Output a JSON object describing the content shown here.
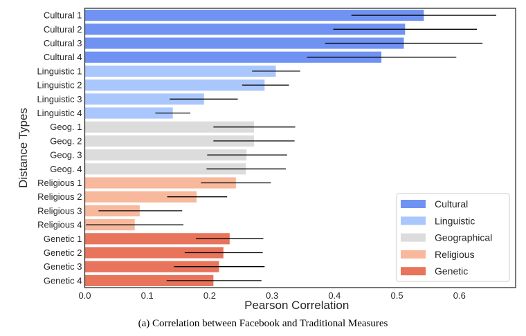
{
  "chart_data": {
    "type": "bar",
    "orientation": "horizontal",
    "title": "",
    "xlabel": "Pearson Correlation",
    "ylabel": "Distance Types",
    "xlim": [
      0.0,
      0.69
    ],
    "xticks": [
      0.0,
      0.1,
      0.2,
      0.3,
      0.4,
      0.5,
      0.6
    ],
    "xtick_labels": [
      "0.0",
      "0.1",
      "0.2",
      "0.3",
      "0.4",
      "0.5",
      "0.6"
    ],
    "grid": false,
    "legend_position": "bottom-right",
    "groups": [
      {
        "name": "Cultural",
        "color": "#6f92f3"
      },
      {
        "name": "Linguistic",
        "color": "#aac7fd"
      },
      {
        "name": "Geographical",
        "color": "#dddcdc"
      },
      {
        "name": "Religious",
        "color": "#f7b89c"
      },
      {
        "name": "Genetic",
        "color": "#e7745b"
      }
    ],
    "categories": [
      "Cultural 1",
      "Cultural 2",
      "Cultural 3",
      "Cultural 4",
      "Linguistic 1",
      "Linguistic 2",
      "Linguistic 3",
      "Linguistic 4",
      "Geog. 1",
      "Geog. 2",
      "Geog. 3",
      "Geog. 4",
      "Religious 1",
      "Religious 2",
      "Religious 3",
      "Religious 4",
      "Genetic 1",
      "Genetic 2",
      "Genetic 3",
      "Genetic 4"
    ],
    "group_index": [
      0,
      0,
      0,
      0,
      1,
      1,
      1,
      1,
      2,
      2,
      2,
      2,
      3,
      3,
      3,
      3,
      4,
      4,
      4,
      4
    ],
    "values": [
      0.543,
      0.513,
      0.511,
      0.475,
      0.306,
      0.288,
      0.191,
      0.141,
      0.271,
      0.271,
      0.259,
      0.258,
      0.242,
      0.179,
      0.088,
      0.08,
      0.232,
      0.222,
      0.215,
      0.206
    ],
    "error_low": [
      0.427,
      0.398,
      0.385,
      0.356,
      0.268,
      0.252,
      0.136,
      0.113,
      0.206,
      0.206,
      0.196,
      0.195,
      0.186,
      0.132,
      0.022,
      0.002,
      0.178,
      0.16,
      0.143,
      0.131
    ],
    "error_high": [
      0.659,
      0.628,
      0.637,
      0.595,
      0.345,
      0.327,
      0.245,
      0.169,
      0.337,
      0.336,
      0.324,
      0.322,
      0.298,
      0.228,
      0.156,
      0.158,
      0.286,
      0.285,
      0.288,
      0.283
    ]
  },
  "caption": "(a)  Correlation between Facebook and Traditional Measures"
}
